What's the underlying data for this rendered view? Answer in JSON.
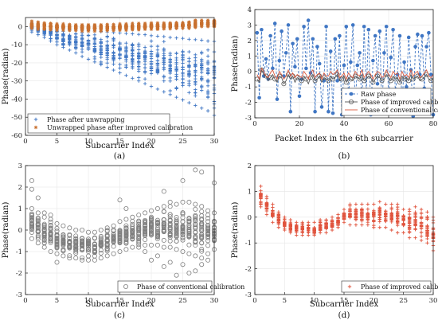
{
  "figure": {
    "panels": [
      "a",
      "b",
      "c",
      "d"
    ]
  },
  "colors": {
    "blue": "#3f76c4",
    "orange": "#c8702f",
    "gray": "#7f7f7f",
    "red": "#e0533c",
    "axis": "#222222"
  },
  "chart_data": [
    {
      "id": "a",
      "type": "scatter",
      "panel_label": "(a)",
      "title": "",
      "xlabel": "Subcarrier Index",
      "ylabel": "Phase(radian)",
      "xlim": [
        0,
        30
      ],
      "ylim": [
        -60,
        5
      ],
      "xticks": [
        0,
        5,
        10,
        15,
        20,
        25,
        30
      ],
      "yticks": [
        0,
        -10,
        -20,
        -30,
        -40,
        -50,
        -60
      ],
      "grid": true,
      "legend_position": "bottom-left",
      "series": [
        {
          "name": "Phase after unwrapping",
          "marker": "plus",
          "color": "#3f76c4",
          "x": [
            1,
            2,
            3,
            4,
            5,
            6,
            7,
            8,
            9,
            10,
            11,
            12,
            13,
            14,
            15,
            16,
            17,
            18,
            19,
            20,
            21,
            22,
            23,
            24,
            25,
            26,
            27,
            28,
            29,
            30
          ],
          "y_max": [
            2,
            1,
            0.5,
            0,
            -0.5,
            -1,
            -1.2,
            -1.5,
            -2,
            -2.3,
            -2.5,
            -2.8,
            -3,
            -3.3,
            -3.5,
            -3.8,
            -4,
            -4.3,
            -4.5,
            -5,
            -5.3,
            -5.5,
            -6,
            -6.3,
            -6.5,
            -7,
            -7.2,
            -7.5,
            -8,
            -8.2
          ],
          "y_min": [
            -3,
            -4.5,
            -6,
            -8,
            -10,
            -11.5,
            -13,
            -14.5,
            -16.5,
            -18,
            -19.5,
            -21,
            -22.5,
            -24,
            -25.5,
            -27,
            -28.5,
            -30,
            -31.5,
            -33,
            -34.5,
            -36,
            -37.5,
            -39,
            -40.5,
            -42,
            -43.5,
            -45,
            -46.5,
            -49
          ]
        },
        {
          "name": "Unwrapped phase after improved calibration",
          "marker": "asterisk",
          "color": "#c8702f",
          "x": [
            1,
            2,
            3,
            4,
            5,
            6,
            7,
            8,
            9,
            10,
            11,
            12,
            13,
            14,
            15,
            16,
            17,
            18,
            19,
            20,
            21,
            22,
            23,
            24,
            25,
            26,
            27,
            28,
            29,
            30
          ],
          "y_max": [
            3,
            2.5,
            2,
            1.8,
            1.5,
            1.5,
            1.2,
            1,
            1,
            1,
            1,
            1,
            1.2,
            1.2,
            1.5,
            1.5,
            1.8,
            1.8,
            1.8,
            2,
            2,
            2,
            2,
            2.2,
            2.2,
            2.5,
            3.5,
            3.5,
            3.5,
            3.5
          ],
          "y_min": [
            -1,
            -1.5,
            -1.5,
            -1.8,
            -2,
            -2,
            -2.2,
            -2.2,
            -2.5,
            -2.5,
            -2.5,
            -2.5,
            -2.3,
            -2.2,
            -2,
            -2,
            -1.8,
            -1.8,
            -1.5,
            -1.5,
            -1.5,
            -1.3,
            -1.2,
            -1,
            -1,
            -1,
            -0.5,
            0,
            0,
            0
          ]
        }
      ]
    },
    {
      "id": "b",
      "type": "line",
      "panel_label": "(b)",
      "title": "",
      "xlabel": "Packet Index in the 6th subcarrier",
      "ylabel": "Phase(radian)",
      "xlim": [
        0,
        80
      ],
      "ylim": [
        -3,
        4
      ],
      "xticks": [
        0,
        20,
        40,
        60,
        80
      ],
      "yticks": [
        4,
        3,
        2,
        1,
        0,
        -1,
        -2,
        -3
      ],
      "grid": true,
      "legend_position": "bottom-right",
      "series": [
        {
          "name": "Raw phase",
          "color": "#3f76c4",
          "style": "dashed",
          "marker": "filled-circle",
          "x": [
            1,
            2,
            3,
            4,
            5,
            6,
            7,
            8,
            9,
            10,
            11,
            12,
            13,
            14,
            15,
            16,
            17,
            18,
            19,
            20,
            21,
            22,
            23,
            24,
            25,
            26,
            27,
            28,
            29,
            30,
            31,
            32,
            33,
            34,
            35,
            36,
            37,
            38,
            39,
            40,
            41,
            42,
            43,
            44,
            45,
            46,
            47,
            48,
            49,
            50,
            51,
            52,
            53,
            54,
            55,
            56,
            57,
            58,
            59,
            60,
            61,
            62,
            63,
            64,
            65,
            66,
            67,
            68,
            69,
            70,
            71,
            72,
            73,
            74,
            75,
            76,
            77,
            78,
            79,
            80
          ],
          "y": [
            2.5,
            -1.7,
            2.7,
            -0.3,
            0.8,
            -0.5,
            2.3,
            0.2,
            3.1,
            -1.8,
            0.7,
            2.6,
            -0.3,
            1.2,
            3.0,
            -2.6,
            1.8,
            0.3,
            2.1,
            -1.6,
            -0.5,
            2.9,
            0.2,
            3.3,
            -0.1,
            2.1,
            -2.6,
            1.6,
            0.5,
            -2.3,
            -0.6,
            2.9,
            -2.6,
            1.3,
            -2.7,
            2.1,
            -0.6,
            2.3,
            -2.8,
            0.4,
            2.9,
            -1.7,
            0.6,
            3.0,
            -2.2,
            0.4,
            1.2,
            -2.3,
            2.9,
            -1.3,
            2.7,
            -2.8,
            0.7,
            2.3,
            -0.8,
            2.6,
            -2.6,
            1.2,
            2.9,
            -1.9,
            0.9,
            2.7,
            -1.3,
            -0.2,
            2.3,
            -2.3,
            0.6,
            -1.0,
            2.2,
            0.1,
            -2.9,
            1.6,
            2.4,
            -0.2,
            2.3,
            -1.1,
            1.6,
            2.5,
            -0.2,
            -2.8
          ]
        },
        {
          "name": "Phase of improved calibration",
          "color": "#555555",
          "style": "solid",
          "marker": "open-circle",
          "x": [
            1,
            2,
            3,
            4,
            5,
            6,
            7,
            8,
            9,
            10,
            11,
            12,
            13,
            14,
            15,
            16,
            17,
            18,
            19,
            20,
            21,
            22,
            23,
            24,
            25,
            26,
            27,
            28,
            29,
            30,
            31,
            32,
            33,
            34,
            35,
            36,
            37,
            38,
            39,
            40,
            41,
            42,
            43,
            44,
            45,
            46,
            47,
            48,
            49,
            50,
            51,
            52,
            53,
            54,
            55,
            56,
            57,
            58,
            59,
            60,
            61,
            62,
            63,
            64,
            65,
            66,
            67,
            68,
            69,
            70,
            71,
            72,
            73,
            74,
            75,
            76,
            77,
            78,
            79,
            80
          ],
          "y": [
            -0.5,
            -0.7,
            0.1,
            -0.2,
            -0.3,
            -0.6,
            -0.4,
            -0.2,
            -0.5,
            -0.7,
            -0.3,
            -0.4,
            -0.8,
            -0.6,
            -0.2,
            -0.5,
            -0.3,
            -0.7,
            -0.4,
            -0.5,
            -0.6,
            -0.3,
            -0.5,
            -0.8,
            -0.4,
            -0.2,
            -0.6,
            -0.5,
            -0.3,
            -0.7,
            -0.4,
            -0.5,
            -0.6,
            -0.3,
            -0.5,
            -0.4,
            -0.2,
            -0.6,
            -0.5,
            -0.3,
            -0.7,
            -0.4,
            -0.5,
            -0.6,
            -0.3,
            -0.4,
            -0.5,
            -0.2,
            -0.6,
            -0.5,
            -0.3,
            -0.4,
            -0.7,
            -0.5,
            -0.3,
            -0.4,
            -0.6,
            -0.5,
            -0.2,
            -0.4,
            -0.6,
            -0.3,
            -0.5,
            -0.4,
            -0.7,
            -0.3,
            -0.5,
            -0.4,
            -0.6,
            -0.2,
            -0.5,
            -0.4,
            -0.3,
            -0.6,
            -0.5,
            -0.4,
            -0.2,
            -0.5,
            -0.6,
            -0.4
          ]
        },
        {
          "name": "Phase of conventional calibration",
          "color": "#d9583c",
          "style": "solid",
          "marker": "none",
          "x": [
            1,
            2,
            3,
            4,
            5,
            6,
            7,
            8,
            9,
            10,
            11,
            12,
            13,
            14,
            15,
            16,
            17,
            18,
            19,
            20,
            21,
            22,
            23,
            24,
            25,
            26,
            27,
            28,
            29,
            30,
            31,
            32,
            33,
            34,
            35,
            36,
            37,
            38,
            39,
            40,
            41,
            42,
            43,
            44,
            45,
            46,
            47,
            48,
            49,
            50,
            51,
            52,
            53,
            54,
            55,
            56,
            57,
            58,
            59,
            60,
            61,
            62,
            63,
            64,
            65,
            66,
            67,
            68,
            69,
            70,
            71,
            72,
            73,
            74,
            75,
            76,
            77,
            78,
            79,
            80
          ],
          "y": [
            -0.2,
            -0.5,
            0.2,
            0.0,
            -0.3,
            -0.4,
            -0.1,
            0.1,
            -0.3,
            -0.5,
            0.0,
            -0.2,
            -0.5,
            -0.3,
            0.1,
            -0.3,
            -0.1,
            -0.4,
            -0.2,
            -0.3,
            -0.4,
            0.0,
            -0.2,
            -0.5,
            -0.1,
            0.1,
            -0.4,
            -0.2,
            -0.1,
            -0.5,
            -0.1,
            -0.3,
            -0.3,
            0.0,
            -0.2,
            -0.1,
            0.1,
            -0.4,
            -0.3,
            -0.1,
            -0.5,
            -0.1,
            -0.3,
            -0.4,
            0.0,
            -0.2,
            -0.3,
            0.1,
            -0.4,
            -0.2,
            0.0,
            -0.2,
            -0.5,
            -0.2,
            0.0,
            -0.1,
            -0.4,
            -0.3,
            0.1,
            -0.2,
            -0.4,
            0.0,
            -0.2,
            -0.1,
            -0.5,
            0.0,
            -0.3,
            -0.2,
            -0.4,
            0.1,
            -0.3,
            -0.1,
            0.0,
            -0.4,
            -0.3,
            -0.1,
            0.1,
            -0.3,
            -0.4,
            -0.2
          ]
        }
      ]
    },
    {
      "id": "c",
      "type": "scatter",
      "panel_label": "(c)",
      "title": "",
      "xlabel": "Subcarrier Index",
      "ylabel": "Phase(radian)",
      "xlim": [
        0,
        30
      ],
      "ylim": [
        -3,
        3
      ],
      "xticks": [
        0,
        5,
        10,
        15,
        20,
        25,
        30
      ],
      "yticks": [
        3,
        2,
        1,
        0,
        -1,
        -2,
        -3
      ],
      "grid": true,
      "legend_position": "bottom-right",
      "series": [
        {
          "name": "Phase of conventional calibration",
          "marker": "open-circle",
          "color": "#7f7f7f",
          "x": [
            1,
            2,
            3,
            4,
            5,
            6,
            7,
            8,
            9,
            10,
            11,
            12,
            13,
            14,
            15,
            16,
            17,
            18,
            19,
            20,
            21,
            22,
            23,
            24,
            25,
            26,
            27,
            28,
            29,
            30
          ],
          "y_max": [
            1.0,
            0.8,
            0.6,
            0.5,
            0.3,
            0.2,
            0.1,
            0.0,
            0.0,
            -0.1,
            -0.1,
            0.0,
            0.1,
            0.2,
            0.4,
            0.5,
            0.6,
            0.7,
            0.8,
            0.9,
            1.0,
            1.1,
            1.1,
            1.2,
            1.3,
            1.3,
            1.2,
            1.1,
            0.9,
            0.8
          ],
          "y_min": [
            -0.4,
            -0.6,
            -0.8,
            -1.0,
            -1.1,
            -1.2,
            -1.3,
            -1.3,
            -1.4,
            -1.4,
            -1.4,
            -1.3,
            -1.2,
            -1.1,
            -1.0,
            -0.9,
            -0.8,
            -0.8,
            -0.7,
            -0.7,
            -0.7,
            -0.8,
            -0.8,
            -0.9,
            -1.0,
            -1.1,
            -1.2,
            -1.3,
            -1.1,
            -0.9
          ],
          "outliers": [
            [
              1,
              2.3
            ],
            [
              1,
              1.9
            ],
            [
              2,
              1.5
            ],
            [
              3,
              0.8
            ],
            [
              4,
              0.7
            ],
            [
              5,
              -1.5
            ],
            [
              15,
              1.4
            ],
            [
              16,
              1.0
            ],
            [
              19,
              -1.0
            ],
            [
              20,
              -1.4
            ],
            [
              21,
              -1.2
            ],
            [
              22,
              1.8
            ],
            [
              22,
              -1.7
            ],
            [
              23,
              -1.5
            ],
            [
              23,
              1.3
            ],
            [
              24,
              -2.1
            ],
            [
              25,
              -1.6
            ],
            [
              25,
              2.3
            ],
            [
              26,
              -2.0
            ],
            [
              27,
              2.8
            ],
            [
              27,
              -1.9
            ],
            [
              28,
              2.7
            ],
            [
              28,
              -1.6
            ],
            [
              29,
              -1.4
            ],
            [
              30,
              2.2
            ]
          ]
        }
      ]
    },
    {
      "id": "d",
      "type": "scatter",
      "panel_label": "(d)",
      "title": "",
      "xlabel": "Subcarrier Index",
      "ylabel": "Phase(radian)",
      "xlim": [
        0,
        30
      ],
      "ylim": [
        -3,
        2
      ],
      "xticks": [
        0,
        5,
        10,
        15,
        20,
        25,
        30
      ],
      "yticks": [
        2,
        1,
        0,
        -1,
        -2,
        -3
      ],
      "grid": true,
      "legend_position": "bottom-right",
      "series": [
        {
          "name": "Phase of improved calibration",
          "marker": "plus",
          "color": "#e0533c",
          "x": [
            1,
            2,
            3,
            4,
            5,
            6,
            7,
            8,
            9,
            10,
            11,
            12,
            13,
            14,
            15,
            16,
            17,
            18,
            19,
            20,
            21,
            22,
            23,
            24,
            25,
            26,
            27,
            28,
            29,
            30
          ],
          "y_max": [
            1.2,
            0.8,
            0.5,
            0.2,
            0.0,
            -0.1,
            -0.2,
            -0.2,
            -0.2,
            -0.2,
            -0.1,
            -0.1,
            0.0,
            0.1,
            0.3,
            0.5,
            0.5,
            0.5,
            0.5,
            0.5,
            0.6,
            0.5,
            0.5,
            0.5,
            0.3,
            0.3,
            0.4,
            0.3,
            0.2,
            0.0
          ],
          "y_min": [
            0.4,
            0.1,
            -0.2,
            -0.4,
            -0.5,
            -0.6,
            -0.7,
            -0.7,
            -0.7,
            -0.7,
            -0.6,
            -0.6,
            -0.5,
            -0.4,
            -0.2,
            -0.3,
            -0.3,
            -0.3,
            -0.3,
            -0.4,
            -0.4,
            -0.4,
            -0.5,
            -0.6,
            -0.6,
            -0.8,
            -0.8,
            -0.9,
            -1.0,
            -1.3
          ]
        }
      ]
    }
  ]
}
